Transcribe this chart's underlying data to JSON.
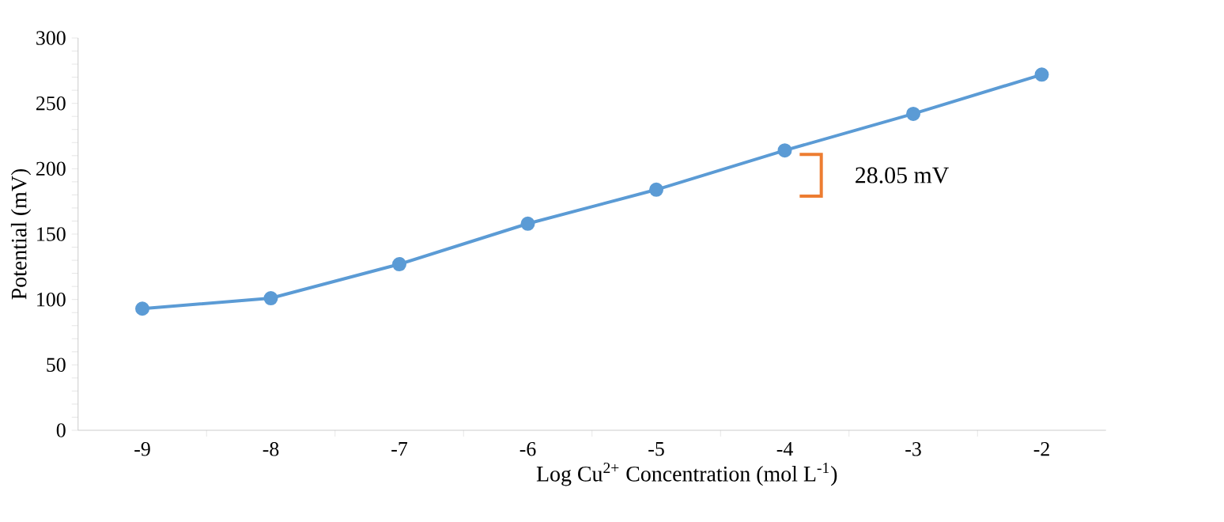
{
  "chart_data": {
    "type": "line",
    "xlabel": "Log Cu$^{2+}$ Concentration (mol L$^{-1}$)",
    "ylabel": "Potential (mV)",
    "categories": [
      "-9",
      "-8",
      "-7",
      "-6",
      "-5",
      "-4",
      "-3",
      "-2"
    ],
    "series": [
      {
        "color": "#5b9bd5",
        "values": [
          93,
          101,
          127,
          158,
          184,
          214,
          242,
          272
        ]
      }
    ],
    "ylim": [
      0,
      300
    ],
    "yticks": [
      0,
      50,
      100,
      150,
      200,
      250,
      300
    ],
    "marker": "circle",
    "line_style": "solid",
    "grid": false,
    "annotations": [
      "28.05 mV"
    ]
  }
}
